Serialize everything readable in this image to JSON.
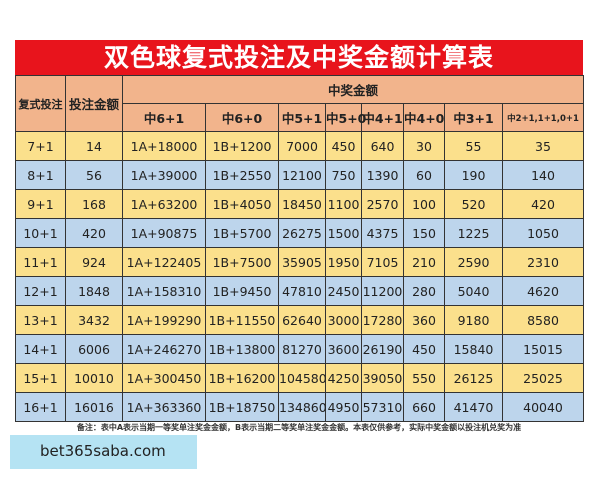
{
  "title": "双色球复式投注及中奖金额计算表",
  "headers": {
    "bet_type": "复式投注",
    "bet_amount": "投注金额",
    "prize_group": "中奖金额",
    "prize_columns": [
      "中6+1",
      "中6+0",
      "中5+1",
      "中5+0",
      "中4+1",
      "中4+0",
      "中3+1",
      "中2+1,1+1,0+1"
    ]
  },
  "rows": [
    [
      "7+1",
      "14",
      "1A+18000",
      "1B+1200",
      "7000",
      "450",
      "640",
      "30",
      "55",
      "35"
    ],
    [
      "8+1",
      "56",
      "1A+39000",
      "1B+2550",
      "12100",
      "750",
      "1390",
      "60",
      "190",
      "140"
    ],
    [
      "9+1",
      "168",
      "1A+63200",
      "1B+4050",
      "18450",
      "1100",
      "2570",
      "100",
      "520",
      "420"
    ],
    [
      "10+1",
      "420",
      "1A+90875",
      "1B+5700",
      "26275",
      "1500",
      "4375",
      "150",
      "1225",
      "1050"
    ],
    [
      "11+1",
      "924",
      "1A+122405",
      "1B+7500",
      "35905",
      "1950",
      "7105",
      "210",
      "2590",
      "2310"
    ],
    [
      "12+1",
      "1848",
      "1A+158310",
      "1B+9450",
      "47810",
      "2450",
      "11200",
      "280",
      "5040",
      "4620"
    ],
    [
      "13+1",
      "3432",
      "1A+199290",
      "1B+11550",
      "62640",
      "3000",
      "17280",
      "360",
      "9180",
      "8580"
    ],
    [
      "14+1",
      "6006",
      "1A+246270",
      "1B+13800",
      "81270",
      "3600",
      "26190",
      "450",
      "15840",
      "15015"
    ],
    [
      "15+1",
      "10010",
      "1A+300450",
      "1B+16200",
      "104580",
      "4250",
      "39050",
      "550",
      "26125",
      "25025"
    ],
    [
      "16+1",
      "16016",
      "1A+363360",
      "1B+18750",
      "134860",
      "4950",
      "57310",
      "660",
      "41470",
      "40040"
    ]
  ],
  "note": "备注：表中A表示当期一等奖单注奖金金额，B表示当期二等奖单注奖金金额。本表仅供参考，实际中奖金额以投注机兑奖为准",
  "watermark": "bet365saba.com",
  "colors": {
    "title_bg": "#e8141c",
    "header_bg": "#f2b48c",
    "row_yellow": "#fbe08c",
    "row_blue": "#bdd5ec",
    "watermark_bg": "#b5e3f3"
  }
}
